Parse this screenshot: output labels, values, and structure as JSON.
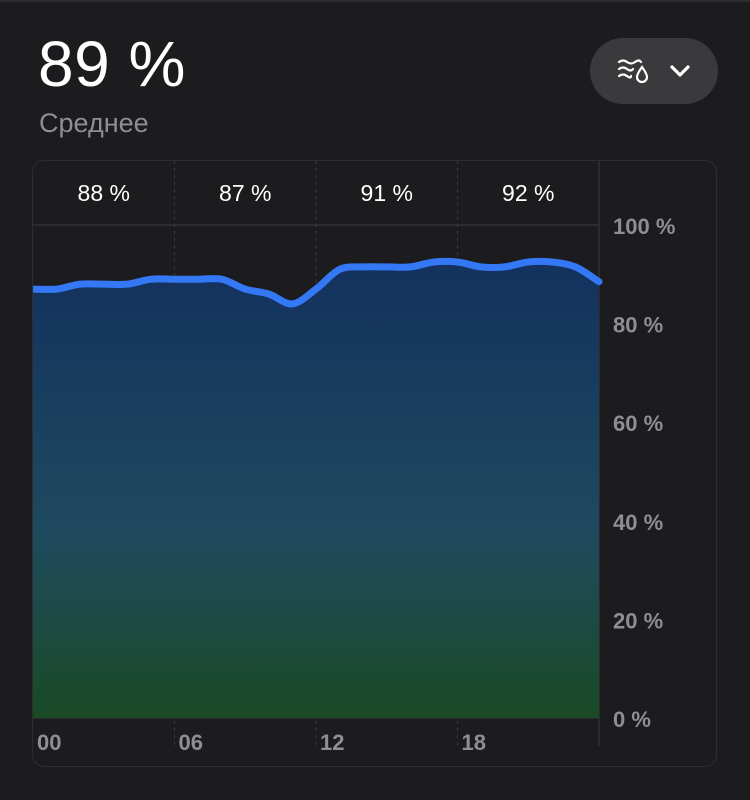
{
  "header": {
    "value": "89 %",
    "label": "Среднее",
    "menu_icon": "humidity-icon",
    "dropdown_icon": "chevron-down-icon"
  },
  "colors": {
    "background": "#1c1c1e",
    "line": "#3478f6",
    "fill_top": "#13315e",
    "fill_bottom": "#1a4a25",
    "grid": "#3a3a3c",
    "axis_text": "#8e8e93"
  },
  "chart_data": {
    "type": "area",
    "ylim": [
      0,
      100
    ],
    "y_ticks": [
      "100 %",
      "80 %",
      "60 %",
      "40 %",
      "20 %",
      "0 %"
    ],
    "y_tick_values": [
      100,
      80,
      60,
      40,
      20,
      0
    ],
    "x_ticks": [
      "00",
      "06",
      "12",
      "18"
    ],
    "x_tick_values": [
      0,
      6,
      12,
      18
    ],
    "xlim": [
      0,
      24
    ],
    "period_averages": [
      "88 %",
      "87 %",
      "91 %",
      "92 %"
    ],
    "x": [
      0,
      1,
      2,
      3,
      4,
      5,
      6,
      7,
      8,
      9,
      10,
      11,
      12,
      13,
      14,
      15,
      16,
      17,
      18,
      19,
      20,
      21,
      22,
      23,
      24
    ],
    "values": [
      87,
      87,
      88,
      88,
      88,
      89,
      89,
      89,
      89,
      87,
      86,
      84,
      87,
      91,
      91.5,
      91.5,
      91.5,
      92.5,
      92.5,
      91.5,
      91.5,
      92.5,
      92.5,
      91.5,
      88.5
    ]
  }
}
